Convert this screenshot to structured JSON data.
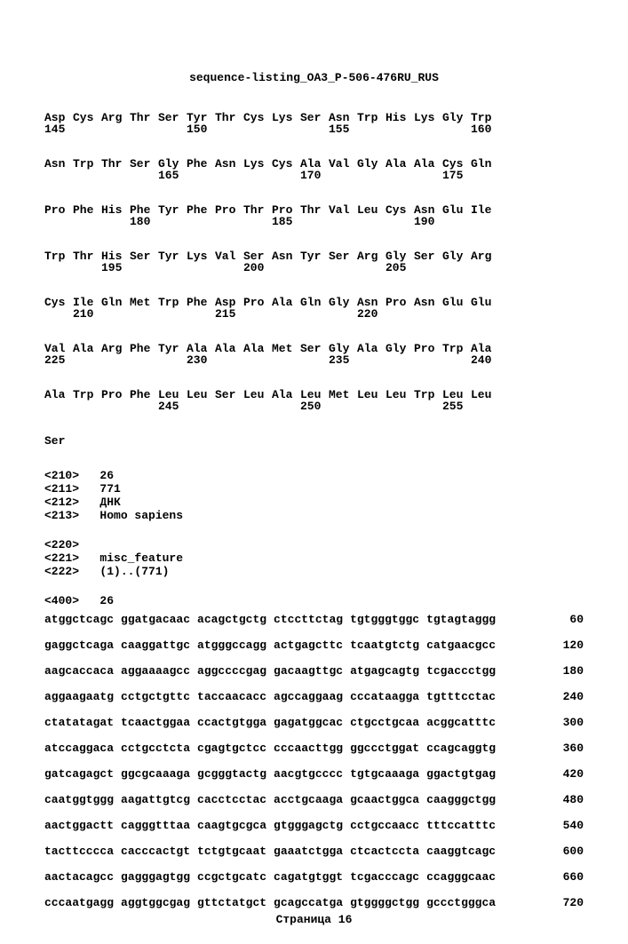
{
  "title": "sequence-listing_OA3_P-506-476RU_RUS",
  "protein_rows": [
    {
      "aa": [
        "Asp",
        "Cys",
        "Arg",
        "Thr",
        "Ser",
        "Tyr",
        "Thr",
        "Cys",
        "Lys",
        "Ser",
        "Asn",
        "Trp",
        "His",
        "Lys",
        "Gly",
        "Trp"
      ],
      "nums": [
        "145",
        "",
        "",
        "",
        "",
        "150",
        "",
        "",
        "",
        "",
        "155",
        "",
        "",
        "",
        "",
        "160"
      ]
    },
    {
      "aa": [
        "Asn",
        "Trp",
        "Thr",
        "Ser",
        "Gly",
        "Phe",
        "Asn",
        "Lys",
        "Cys",
        "Ala",
        "Val",
        "Gly",
        "Ala",
        "Ala",
        "Cys",
        "Gln"
      ],
      "nums": [
        "",
        "",
        "",
        "",
        "165",
        "",
        "",
        "",
        "",
        "170",
        "",
        "",
        "",
        "",
        "175",
        ""
      ]
    },
    {
      "aa": [
        "Pro",
        "Phe",
        "His",
        "Phe",
        "Tyr",
        "Phe",
        "Pro",
        "Thr",
        "Pro",
        "Thr",
        "Val",
        "Leu",
        "Cys",
        "Asn",
        "Glu",
        "Ile"
      ],
      "nums": [
        "",
        "",
        "",
        "180",
        "",
        "",
        "",
        "",
        "185",
        "",
        "",
        "",
        "",
        "190",
        "",
        ""
      ]
    },
    {
      "aa": [
        "Trp",
        "Thr",
        "His",
        "Ser",
        "Tyr",
        "Lys",
        "Val",
        "Ser",
        "Asn",
        "Tyr",
        "Ser",
        "Arg",
        "Gly",
        "Ser",
        "Gly",
        "Arg"
      ],
      "nums": [
        "",
        "",
        "195",
        "",
        "",
        "",
        "",
        "200",
        "",
        "",
        "",
        "",
        "205",
        "",
        "",
        ""
      ]
    },
    {
      "aa": [
        "Cys",
        "Ile",
        "Gln",
        "Met",
        "Trp",
        "Phe",
        "Asp",
        "Pro",
        "Ala",
        "Gln",
        "Gly",
        "Asn",
        "Pro",
        "Asn",
        "Glu",
        "Glu"
      ],
      "nums": [
        "",
        "210",
        "",
        "",
        "",
        "",
        "215",
        "",
        "",
        "",
        "",
        "220",
        "",
        "",
        "",
        ""
      ]
    },
    {
      "aa": [
        "Val",
        "Ala",
        "Arg",
        "Phe",
        "Tyr",
        "Ala",
        "Ala",
        "Ala",
        "Met",
        "Ser",
        "Gly",
        "Ala",
        "Gly",
        "Pro",
        "Trp",
        "Ala"
      ],
      "nums": [
        "225",
        "",
        "",
        "",
        "",
        "230",
        "",
        "",
        "",
        "",
        "235",
        "",
        "",
        "",
        "",
        "240"
      ]
    },
    {
      "aa": [
        "Ala",
        "Trp",
        "Pro",
        "Phe",
        "Leu",
        "Leu",
        "Ser",
        "Leu",
        "Ala",
        "Leu",
        "Met",
        "Leu",
        "Leu",
        "Trp",
        "Leu",
        "Leu"
      ],
      "nums": [
        "",
        "",
        "",
        "",
        "245",
        "",
        "",
        "",
        "",
        "250",
        "",
        "",
        "",
        "",
        "255",
        ""
      ]
    }
  ],
  "terminal": "Ser",
  "meta1": [
    "<210>   26",
    "<211>   771",
    "<212>   ДНК",
    "<213>   Homo sapiens"
  ],
  "meta2": [
    "<220>",
    "<221>   misc_feature",
    "<222>   (1)..(771)"
  ],
  "seq_header": "<400>   26",
  "dna_rows": [
    {
      "grp": [
        "atggctcagc",
        "ggatgacaac",
        "acagctgctg",
        "ctccttctag",
        "tgtgggtggc",
        "tgtagtaggg"
      ],
      "pos": "60"
    },
    {
      "grp": [
        "gaggctcaga",
        "caaggattgc",
        "atgggccagg",
        "actgagcttc",
        "tcaatgtctg",
        "catgaacgcc"
      ],
      "pos": "120"
    },
    {
      "grp": [
        "aagcaccaca",
        "aggaaaagcc",
        "aggccccgag",
        "gacaagttgc",
        "atgagcagtg",
        "tcgaccctgg"
      ],
      "pos": "180"
    },
    {
      "grp": [
        "aggaagaatg",
        "cctgctgttc",
        "taccaacacc",
        "agccaggaag",
        "cccataagga",
        "tgtttcctac"
      ],
      "pos": "240"
    },
    {
      "grp": [
        "ctatatagat",
        "tcaactggaa",
        "ccactgtgga",
        "gagatggcac",
        "ctgcctgcaa",
        "acggcatttc"
      ],
      "pos": "300"
    },
    {
      "grp": [
        "atccaggaca",
        "cctgcctcta",
        "cgagtgctcc",
        "cccaacttgg",
        "ggccctggat",
        "ccagcaggtg"
      ],
      "pos": "360"
    },
    {
      "grp": [
        "gatcagagct",
        "ggcgcaaaga",
        "gcgggtactg",
        "aacgtgcccc",
        "tgtgcaaaga",
        "ggactgtgag"
      ],
      "pos": "420"
    },
    {
      "grp": [
        "caatggtggg",
        "aagattgtcg",
        "cacctcctac",
        "acctgcaaga",
        "gcaactggca",
        "caagggctgg"
      ],
      "pos": "480"
    },
    {
      "grp": [
        "aactggactt",
        "cagggtttaa",
        "caagtgcgca",
        "gtgggagctg",
        "cctgccaacc",
        "tttccatttc"
      ],
      "pos": "540"
    },
    {
      "grp": [
        "tacttcccca",
        "cacccactgt",
        "tctgtgcaat",
        "gaaatctgga",
        "ctcactccta",
        "caaggtcagc"
      ],
      "pos": "600"
    },
    {
      "grp": [
        "aactacagcc",
        "gagggagtgg",
        "ccgctgcatc",
        "cagatgtggt",
        "tcgacccagc",
        "ccagggcaac"
      ],
      "pos": "660"
    },
    {
      "grp": [
        "cccaatgagg",
        "aggtggcgag",
        "gttctatgct",
        "gcagccatga",
        "gtggggctgg",
        "gccctgggca"
      ],
      "pos": "720"
    }
  ],
  "footer": "Страница 16"
}
